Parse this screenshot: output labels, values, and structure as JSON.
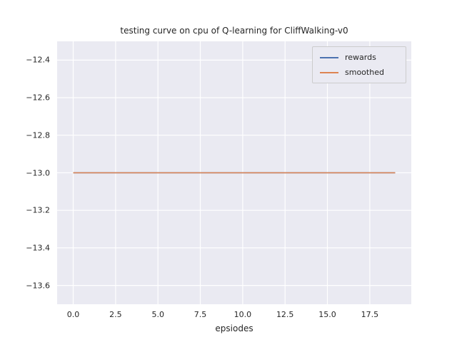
{
  "colors": {
    "figure_bg": "#ffffff",
    "axes_bg": "#eaeaf2",
    "grid": "#ffffff",
    "text": "#262626",
    "legend_bg": "#eaeaf2",
    "legend_border": "#cccccc"
  },
  "chart_data": {
    "type": "line",
    "title": "testing curve on cpu of Q-learning for CliffWalking-v0",
    "xlabel": "epsiodes",
    "ylabel": "",
    "x": [
      0,
      1,
      2,
      3,
      4,
      5,
      6,
      7,
      8,
      9,
      10,
      11,
      12,
      13,
      14,
      15,
      16,
      17,
      18,
      19
    ],
    "series": [
      {
        "name": "rewards",
        "color": "#4c72b0",
        "values": [
          -13.0,
          -13.0,
          -13.0,
          -13.0,
          -13.0,
          -13.0,
          -13.0,
          -13.0,
          -13.0,
          -13.0,
          -13.0,
          -13.0,
          -13.0,
          -13.0,
          -13.0,
          -13.0,
          -13.0,
          -13.0,
          -13.0,
          -13.0
        ]
      },
      {
        "name": "smoothed",
        "color": "#dd8452",
        "values": [
          -13.0,
          -13.0,
          -13.0,
          -13.0,
          -13.0,
          -13.0,
          -13.0,
          -13.0,
          -13.0,
          -13.0,
          -13.0,
          -13.0,
          -13.0,
          -13.0,
          -13.0,
          -13.0,
          -13.0,
          -13.0,
          -13.0,
          -13.0
        ]
      }
    ],
    "xlim": [
      -0.95,
      19.95
    ],
    "ylim": [
      -13.7,
      -12.3
    ],
    "xticks": [
      {
        "value": 0.0,
        "label": "0.0"
      },
      {
        "value": 2.5,
        "label": "2.5"
      },
      {
        "value": 5.0,
        "label": "5.0"
      },
      {
        "value": 7.5,
        "label": "7.5"
      },
      {
        "value": 10.0,
        "label": "10.0"
      },
      {
        "value": 12.5,
        "label": "12.5"
      },
      {
        "value": 15.0,
        "label": "15.0"
      },
      {
        "value": 17.5,
        "label": "17.5"
      }
    ],
    "yticks": [
      {
        "value": -12.4,
        "label": "−12.4"
      },
      {
        "value": -12.6,
        "label": "−12.6"
      },
      {
        "value": -12.8,
        "label": "−12.8"
      },
      {
        "value": -13.0,
        "label": "−13.0"
      },
      {
        "value": -13.2,
        "label": "−13.2"
      },
      {
        "value": -13.4,
        "label": "−13.4"
      },
      {
        "value": -13.6,
        "label": "−13.6"
      }
    ],
    "grid": true,
    "legend_position": "upper right"
  }
}
